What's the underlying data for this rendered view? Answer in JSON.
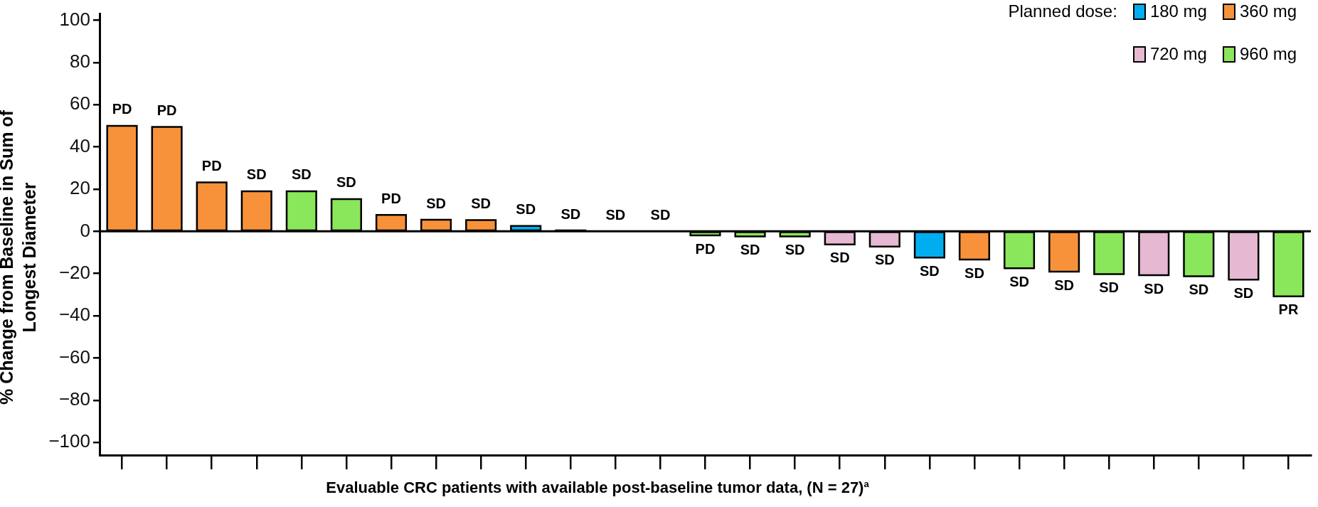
{
  "chart_data": {
    "type": "bar",
    "xlabel": "Evaluable CRC patients with available post-baseline tumor data, (N = 27)$^{a}$",
    "ylabel": "% Change from Baseline in Sum of Longest Diameter",
    "legend_title": "Planned dose:",
    "legend": "top right",
    "grid": false,
    "categories": [
      null,
      null,
      null,
      null,
      null,
      null,
      null,
      null,
      null,
      null,
      null,
      null,
      null,
      null,
      null,
      null,
      null,
      null,
      null,
      null,
      null,
      null,
      null,
      null,
      null,
      null,
      null
    ],
    "ylim": [
      -106,
      103
    ],
    "yticks": [
      {
        "value": -100,
        "label": "−100"
      },
      {
        "value": -80,
        "label": "−80"
      },
      {
        "value": -60,
        "label": "−60"
      },
      {
        "value": -40,
        "label": "−40"
      },
      {
        "value": -20,
        "label": "−20"
      },
      0,
      20,
      40,
      60,
      80,
      100
    ],
    "ref_lines": [
      {
        "axis": "y",
        "value": 0,
        "color": "#000000"
      }
    ],
    "series": [
      {
        "name": "180 mg",
        "color": "#00aeef",
        "values": [
          null,
          null,
          null,
          null,
          null,
          null,
          null,
          null,
          null,
          2.6,
          null,
          null,
          null,
          null,
          null,
          null,
          null,
          null,
          -12.4,
          null,
          null,
          null,
          null,
          null,
          null,
          null,
          null
        ],
        "value_labels": [
          null,
          null,
          null,
          null,
          null,
          null,
          null,
          null,
          null,
          "SD",
          null,
          null,
          null,
          null,
          null,
          null,
          null,
          null,
          "SD",
          null,
          null,
          null,
          null,
          null,
          null,
          null,
          null
        ]
      },
      {
        "name": "360 mg",
        "color": "#f7923a",
        "values": [
          50,
          49.5,
          23.2,
          19,
          null,
          null,
          7.8,
          5.5,
          5.3,
          null,
          0.3,
          null,
          null,
          null,
          null,
          null,
          null,
          null,
          null,
          -13.4,
          null,
          -19.1,
          null,
          null,
          null,
          null,
          null
        ],
        "value_labels": [
          "PD",
          "PD",
          "PD",
          "SD",
          null,
          null,
          "PD",
          "SD",
          "SD",
          null,
          "SD",
          null,
          null,
          null,
          null,
          null,
          null,
          null,
          null,
          "SD",
          null,
          "SD",
          null,
          null,
          null,
          null,
          null
        ]
      },
      {
        "name": "720 mg",
        "color": "#e6b8d2",
        "values": [
          null,
          null,
          null,
          null,
          null,
          null,
          null,
          null,
          null,
          null,
          null,
          null,
          null,
          null,
          null,
          null,
          -6.2,
          -7.2,
          null,
          null,
          null,
          null,
          null,
          -20.8,
          null,
          -22.9,
          null
        ],
        "value_labels": [
          null,
          null,
          null,
          null,
          null,
          null,
          null,
          null,
          null,
          null,
          null,
          null,
          null,
          null,
          null,
          null,
          "SD",
          "SD",
          null,
          null,
          null,
          null,
          null,
          "SD",
          null,
          "SD",
          null
        ]
      },
      {
        "name": "960 mg",
        "color": "#8ae65a",
        "values": [
          null,
          null,
          null,
          null,
          19,
          15.3,
          null,
          null,
          null,
          null,
          null,
          0,
          0,
          -1.9,
          -2.4,
          -2.4,
          null,
          null,
          null,
          null,
          -17.5,
          null,
          -20.3,
          null,
          -21.3,
          null,
          -30.8
        ],
        "value_labels": [
          null,
          null,
          null,
          null,
          "SD",
          "SD",
          null,
          null,
          null,
          null,
          null,
          "SD",
          "SD",
          "PD",
          "SD",
          "SD",
          null,
          null,
          null,
          null,
          "SD",
          null,
          "SD",
          null,
          "SD",
          null,
          "PR"
        ]
      }
    ]
  }
}
